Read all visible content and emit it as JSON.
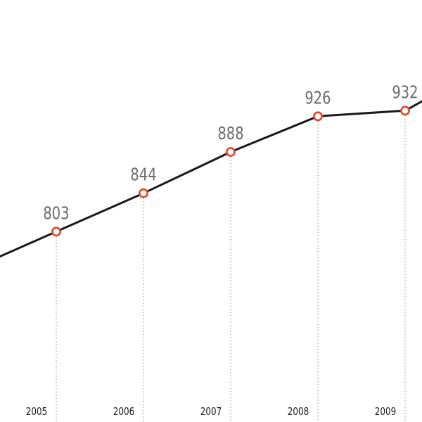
{
  "chart_data": {
    "type": "line",
    "title": "",
    "xlabel": "",
    "ylabel": "",
    "x": [
      "2005",
      "2006",
      "2007",
      "2008",
      "2009"
    ],
    "values": [
      803,
      844,
      888,
      926,
      932
    ],
    "value_labels": [
      "803",
      "844",
      "888",
      "926",
      "932"
    ],
    "ylim": [
      600,
      1050
    ],
    "grid": false,
    "legend": "none",
    "colors": {
      "line": "#1a1a1a",
      "marker": "#e3452c",
      "value_text": "#6b6b6b",
      "year_text": "#1a1a1a",
      "drop_line": "#8a8a8a"
    }
  }
}
